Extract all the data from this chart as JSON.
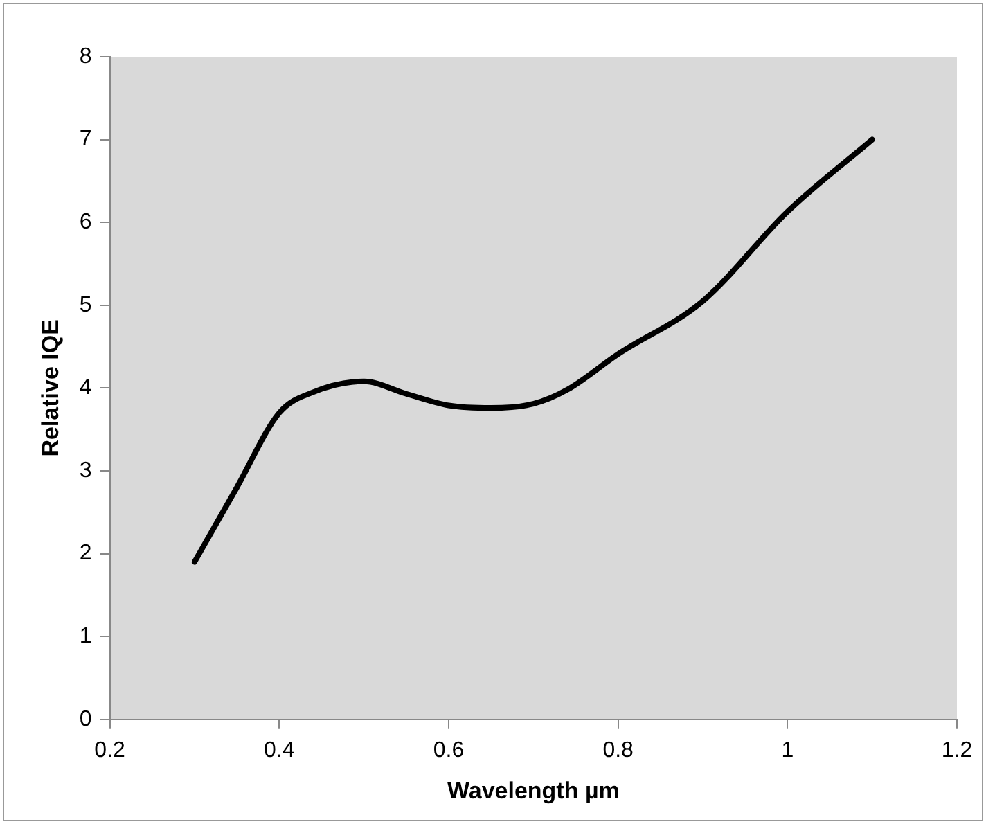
{
  "chart_data": {
    "type": "line",
    "xlabel": "Wavelength µm",
    "ylabel": "Relative IQE",
    "x": [
      0.3,
      0.35,
      0.4,
      0.44,
      0.5,
      0.55,
      0.6,
      0.65,
      0.7,
      0.74,
      0.8,
      0.9,
      1.0,
      1.1
    ],
    "series": [
      {
        "color": "#000000",
        "values": [
          1.9,
          2.8,
          3.7,
          3.95,
          4.08,
          3.93,
          3.79,
          3.76,
          3.81,
          3.98,
          4.41,
          5.05,
          6.13,
          7.0
        ]
      }
    ],
    "xlim": [
      0.2,
      1.2
    ],
    "xticks": [
      0.2,
      0.4,
      0.6,
      0.8,
      1,
      1.2
    ],
    "ylim": [
      0,
      8
    ],
    "yticks": [
      0,
      1,
      2,
      3,
      4,
      5,
      6,
      7,
      8
    ],
    "grid": false,
    "legend": false,
    "marker": "none",
    "line_style": "solid"
  }
}
